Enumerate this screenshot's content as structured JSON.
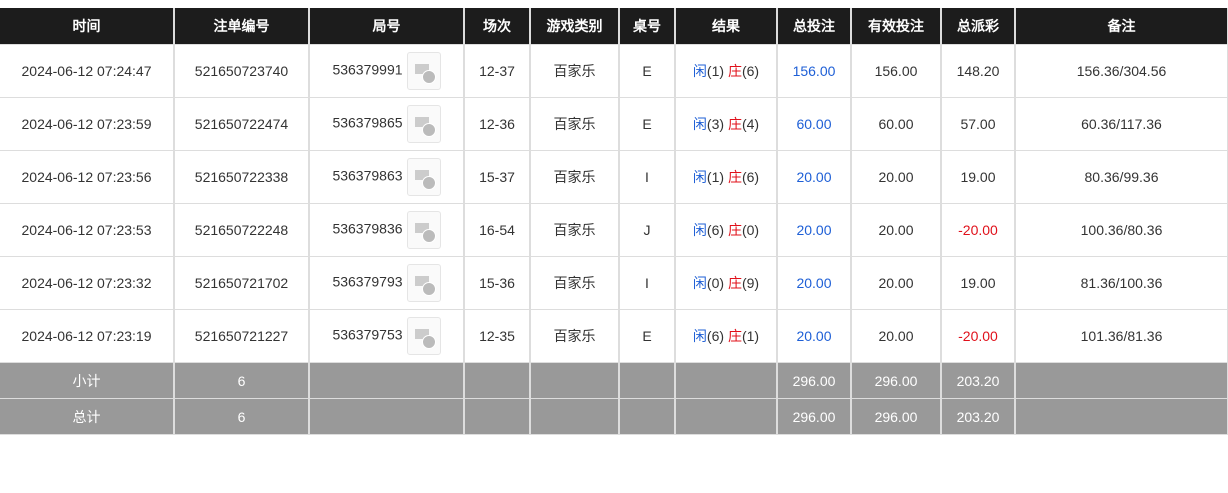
{
  "headers": [
    "时间",
    "注单编号",
    "局号",
    "场次",
    "游戏类别",
    "桌号",
    "结果",
    "总投注",
    "有效投注",
    "总派彩",
    "备注"
  ],
  "rows": [
    {
      "time": "2024-06-12 07:24:47",
      "bet_id": "521650723740",
      "round": "536379991",
      "session": "12-37",
      "game": "百家乐",
      "table": "E",
      "player": "闲",
      "player_val": "(1)",
      "banker": "庄",
      "banker_val": "(6)",
      "total_bet": "156.00",
      "valid_bet": "156.00",
      "payout": "148.20",
      "payout_negative": false,
      "note": "156.36/304.56"
    },
    {
      "time": "2024-06-12 07:23:59",
      "bet_id": "521650722474",
      "round": "536379865",
      "session": "12-36",
      "game": "百家乐",
      "table": "E",
      "player": "闲",
      "player_val": "(3)",
      "banker": "庄",
      "banker_val": "(4)",
      "total_bet": "60.00",
      "valid_bet": "60.00",
      "payout": "57.00",
      "payout_negative": false,
      "note": "60.36/117.36"
    },
    {
      "time": "2024-06-12 07:23:56",
      "bet_id": "521650722338",
      "round": "536379863",
      "session": "15-37",
      "game": "百家乐",
      "table": "I",
      "player": "闲",
      "player_val": "(1)",
      "banker": "庄",
      "banker_val": "(6)",
      "total_bet": "20.00",
      "valid_bet": "20.00",
      "payout": "19.00",
      "payout_negative": false,
      "note": "80.36/99.36"
    },
    {
      "time": "2024-06-12 07:23:53",
      "bet_id": "521650722248",
      "round": "536379836",
      "session": "16-54",
      "game": "百家乐",
      "table": "J",
      "player": "闲",
      "player_val": "(6)",
      "banker": "庄",
      "banker_val": "(0)",
      "total_bet": "20.00",
      "valid_bet": "20.00",
      "payout": "-20.00",
      "payout_negative": true,
      "note": "100.36/80.36"
    },
    {
      "time": "2024-06-12 07:23:32",
      "bet_id": "521650721702",
      "round": "536379793",
      "session": "15-36",
      "game": "百家乐",
      "table": "I",
      "player": "闲",
      "player_val": "(0)",
      "banker": "庄",
      "banker_val": "(9)",
      "total_bet": "20.00",
      "valid_bet": "20.00",
      "payout": "19.00",
      "payout_negative": false,
      "note": "81.36/100.36"
    },
    {
      "time": "2024-06-12 07:23:19",
      "bet_id": "521650721227",
      "round": "536379753",
      "session": "12-35",
      "game": "百家乐",
      "table": "E",
      "player": "闲",
      "player_val": "(6)",
      "banker": "庄",
      "banker_val": "(1)",
      "total_bet": "20.00",
      "valid_bet": "20.00",
      "payout": "-20.00",
      "payout_negative": true,
      "note": "101.36/81.36"
    }
  ],
  "subtotal": {
    "label": "小计",
    "count": "6",
    "total_bet": "296.00",
    "valid_bet": "296.00",
    "payout": "203.20"
  },
  "total": {
    "label": "总计",
    "count": "6",
    "total_bet": "296.00",
    "valid_bet": "296.00",
    "payout": "203.20"
  },
  "colors": {
    "header_bg": "#1c1c1c",
    "summary_bg": "#999999",
    "player": "#1e5fd6",
    "banker": "#e0101a"
  }
}
